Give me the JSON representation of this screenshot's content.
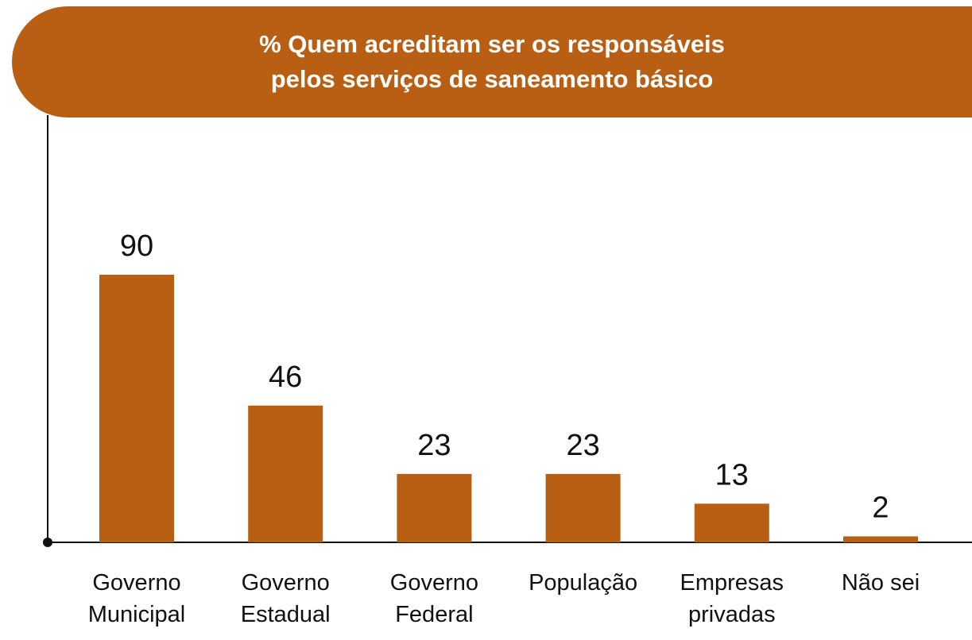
{
  "chart_data": {
    "type": "bar",
    "title": "% Quem acreditam ser os responsáveis\npelos serviços de saneamento básico",
    "categories": [
      "Governo\nMunicipal",
      "Governo\nEstadual",
      "Governo\nFederal",
      "População",
      "Empresas\nprivadas",
      "Não sei"
    ],
    "values": [
      90,
      46,
      23,
      23,
      13,
      2
    ],
    "color": "#b95f14"
  }
}
